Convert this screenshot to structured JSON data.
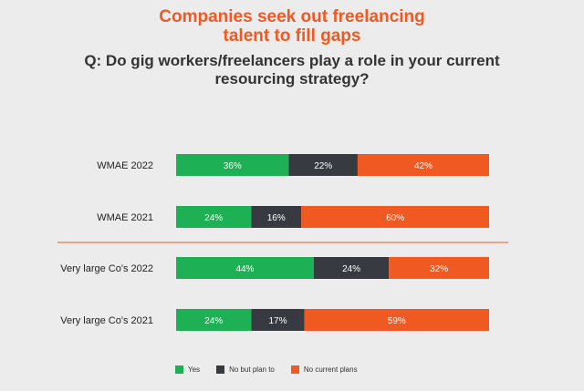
{
  "chart_data": {
    "type": "bar",
    "stacked": true,
    "orientation": "horizontal",
    "title": "Companies seek out freelancing talent to fill gaps",
    "subtitle": "Q: Do gig workers/freelancers play a role in your current resourcing strategy?",
    "categories": [
      "WMAE 2022",
      "WMAE 2021",
      "Very large Co's 2022",
      "Very large Co's 2021"
    ],
    "series": [
      {
        "name": "Yes",
        "color": "#1db054",
        "values": [
          36,
          24,
          44,
          24
        ]
      },
      {
        "name": "No but plan to",
        "color": "#373a40",
        "values": [
          22,
          16,
          24,
          17
        ]
      },
      {
        "name": "No current plans",
        "color": "#f05a22",
        "values": [
          42,
          60,
          32,
          59
        ]
      }
    ],
    "xlim": [
      0,
      100
    ],
    "value_suffix": "%",
    "grid": false,
    "legend_position": "bottom",
    "divider_color": "#f05a22"
  },
  "title_line1": "Companies seek out freelancing",
  "title_line2": "talent to fill gaps",
  "question_line1": "Q: Do gig workers/freelancers play a role in your current",
  "question_line2": "resourcing strategy?"
}
